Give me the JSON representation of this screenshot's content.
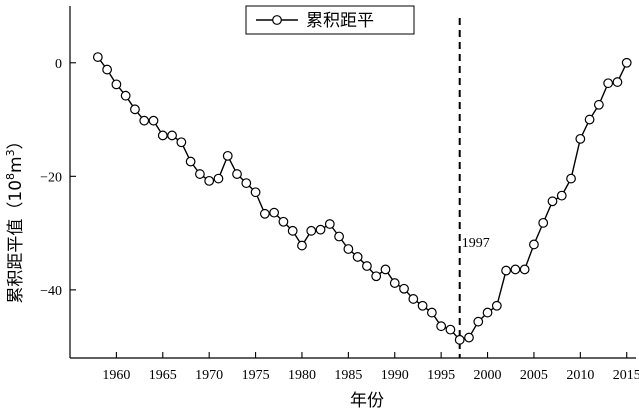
{
  "chart_data": {
    "type": "line",
    "title": "",
    "xlabel": "年份",
    "ylabel": "累积距平值（10⁸m³）",
    "ylabel_parts": {
      "main": "累积距平值（10",
      "exp": "8",
      "unit": "m",
      "exp2": "3",
      "close": "）"
    },
    "xlim": [
      1955,
      2016
    ],
    "ylim": [
      -52,
      10
    ],
    "xticks": [
      1960,
      1965,
      1970,
      1975,
      1980,
      1985,
      1990,
      1995,
      2000,
      2005,
      2010,
      2015
    ],
    "yticks": [
      0,
      -20,
      -40
    ],
    "ytick_labels": [
      "0",
      "−20",
      "−40"
    ],
    "grid": false,
    "legend": {
      "position": "top-left",
      "entries": [
        "累积距平"
      ]
    },
    "series": [
      {
        "name": "累积距平",
        "marker": "open-circle",
        "color": "#000000",
        "x": [
          1958,
          1959,
          1960,
          1961,
          1962,
          1963,
          1964,
          1965,
          1966,
          1967,
          1968,
          1969,
          1970,
          1971,
          1972,
          1973,
          1974,
          1975,
          1976,
          1977,
          1978,
          1979,
          1980,
          1981,
          1982,
          1983,
          1984,
          1985,
          1986,
          1987,
          1988,
          1989,
          1990,
          1991,
          1992,
          1993,
          1994,
          1995,
          1996,
          1997,
          1998,
          1999,
          2000,
          2001,
          2002,
          2003,
          2004,
          2005,
          2006,
          2007,
          2008,
          2009,
          2010,
          2011,
          2012,
          2013,
          2014,
          2015
        ],
        "y": [
          1.0,
          -1.2,
          -3.8,
          -5.8,
          -8.2,
          -10.2,
          -10.2,
          -12.8,
          -12.8,
          -14.0,
          -17.4,
          -19.6,
          -20.8,
          -20.4,
          -16.4,
          -19.6,
          -21.2,
          -22.8,
          -26.6,
          -26.4,
          -28.0,
          -29.6,
          -32.2,
          -29.6,
          -29.4,
          -28.4,
          -30.6,
          -32.8,
          -34.2,
          -35.8,
          -37.6,
          -36.4,
          -38.8,
          -39.8,
          -41.6,
          -42.8,
          -44.0,
          -46.4,
          -47.0,
          -48.8,
          -48.4,
          -45.6,
          -44.0,
          -42.8,
          -36.6,
          -36.4,
          -36.4,
          -32.0,
          -28.2,
          -24.4,
          -23.4,
          -20.4,
          -13.4,
          -10.0,
          -7.4,
          -3.6,
          -3.4,
          0.0
        ]
      }
    ],
    "annotations": [
      {
        "type": "vline",
        "x": 1997,
        "style": "dashed",
        "label": "1997"
      }
    ]
  }
}
